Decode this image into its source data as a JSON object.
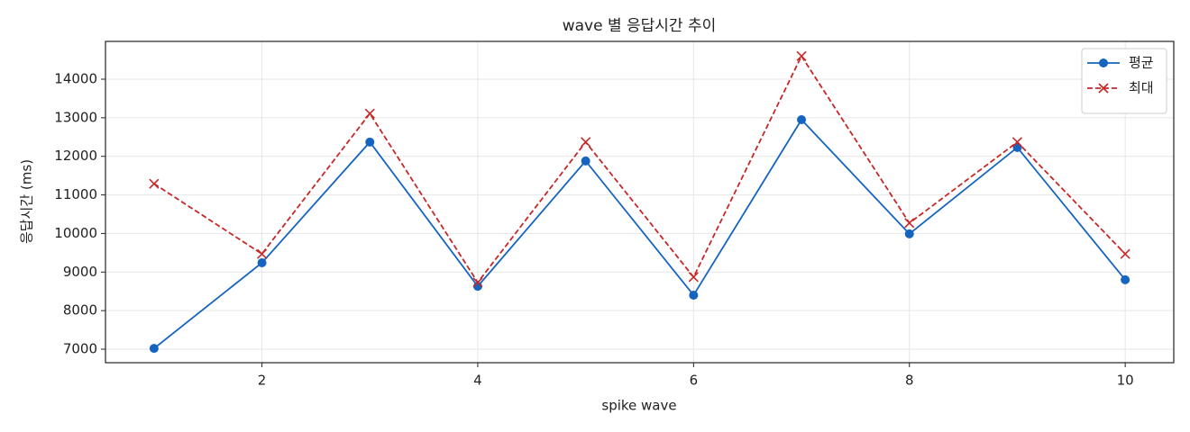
{
  "chart_data": {
    "type": "line",
    "title": "wave 별 응답시간 추이",
    "xlabel": "spike wave",
    "ylabel": "응답시간 (ms)",
    "x": [
      1,
      2,
      3,
      4,
      5,
      6,
      7,
      8,
      9,
      10
    ],
    "series": [
      {
        "name": "평균",
        "color": "#1565c0",
        "marker": "o",
        "linestyle": "solid",
        "values": [
          7020,
          9240,
          12370,
          8630,
          11880,
          8400,
          12950,
          9990,
          12230,
          8800
        ]
      },
      {
        "name": "최대",
        "color": "#c62828",
        "marker": "x",
        "linestyle": "dashed",
        "values": [
          11290,
          9470,
          13110,
          8730,
          12370,
          8870,
          14600,
          10270,
          12370,
          9470
        ]
      }
    ],
    "xlim": [
      0.55,
      10.45
    ],
    "xticks": [
      2,
      4,
      6,
      8,
      10
    ],
    "ylim": [
      6650,
      14980
    ],
    "yticks": [
      7000,
      8000,
      9000,
      10000,
      11000,
      12000,
      13000,
      14000
    ],
    "grid": true,
    "legend": "upper right"
  }
}
